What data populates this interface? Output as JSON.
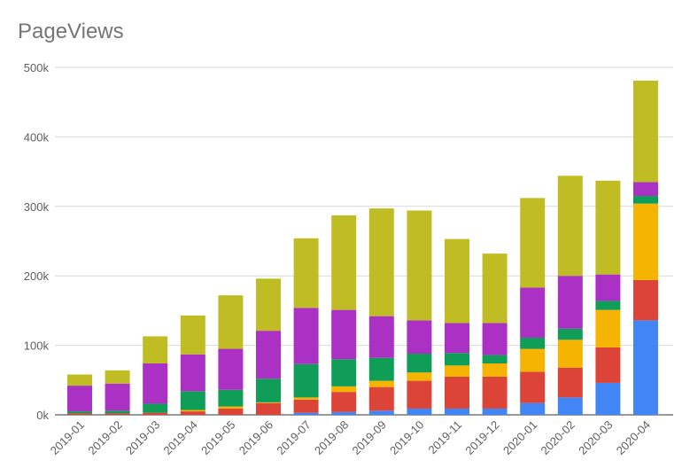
{
  "chart_data": {
    "type": "bar",
    "stacked": true,
    "title": "PageViews",
    "xlabel": "",
    "ylabel": "",
    "ylim": [
      0,
      500000
    ],
    "yticks": [
      "0k",
      "100k",
      "200k",
      "300k",
      "400k",
      "500k"
    ],
    "grid": true,
    "legend": "none",
    "categories": [
      "2019-01",
      "2019-02",
      "2019-03",
      "2019-04",
      "2019-05",
      "2019-06",
      "2019-07",
      "2019-08",
      "2019-09",
      "2019-10",
      "2019-11",
      "2019-12",
      "2020-01",
      "2020-02",
      "2020-03",
      "2020-04"
    ],
    "series": [
      {
        "color": "#4285f4",
        "values": [
          0,
          0,
          0,
          0,
          0,
          0,
          3000,
          4000,
          6000,
          9000,
          9000,
          9000,
          17000,
          25000,
          46000,
          136000
        ]
      },
      {
        "color": "#db4437",
        "values": [
          2000,
          2000,
          3000,
          5000,
          9000,
          17000,
          19000,
          29000,
          34000,
          40000,
          46000,
          46000,
          45000,
          43000,
          51000,
          58000
        ]
      },
      {
        "color": "#f4b400",
        "values": [
          0,
          0,
          0,
          2000,
          3000,
          1000,
          3000,
          8000,
          9000,
          12000,
          16000,
          19000,
          33000,
          40000,
          54000,
          110000
        ]
      },
      {
        "color": "#0f9d58",
        "values": [
          3000,
          4000,
          13000,
          27000,
          24000,
          34000,
          48000,
          39000,
          33000,
          27000,
          18000,
          12000,
          16000,
          16000,
          13000,
          11000
        ]
      },
      {
        "color": "#ab30c4",
        "values": [
          37000,
          39000,
          58000,
          53000,
          59000,
          69000,
          81000,
          71000,
          60000,
          48000,
          43000,
          46000,
          72000,
          76000,
          38000,
          20000
        ]
      },
      {
        "color": "#c0bd24",
        "values": [
          16000,
          19000,
          39000,
          56000,
          77000,
          75000,
          100000,
          136000,
          155000,
          158000,
          121000,
          100000,
          129000,
          144000,
          135000,
          146000
        ]
      }
    ]
  }
}
